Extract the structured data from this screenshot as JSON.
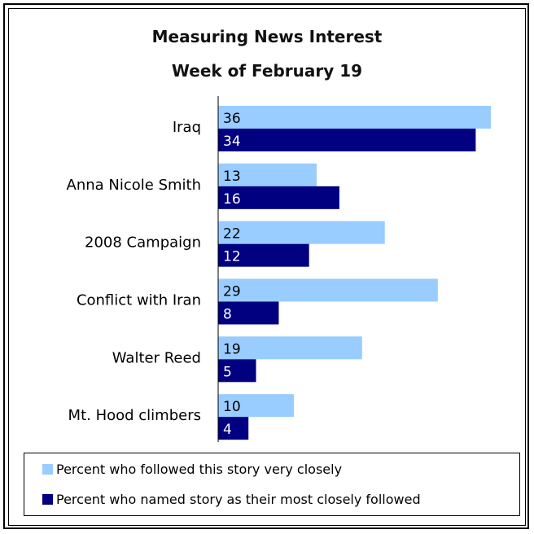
{
  "chart_data": {
    "type": "bar",
    "orientation": "horizontal",
    "title": [
      "Measuring News Interest",
      "Week of February 19"
    ],
    "categories": [
      "Iraq",
      "Anna Nicole Smith",
      "2008 Campaign",
      "Conflict with Iran",
      "Walter Reed",
      "Mt. Hood climbers"
    ],
    "series": [
      {
        "name": "Percent who followed this story very closely",
        "values": [
          36,
          13,
          22,
          29,
          19,
          10
        ],
        "color": "#99ccff"
      },
      {
        "name": "Percent who named story as their most closely followed",
        "values": [
          34,
          16,
          12,
          8,
          5,
          4
        ],
        "color": "#000080"
      }
    ],
    "xlim": [
      0,
      40
    ],
    "grid": false,
    "legend_position": "bottom"
  }
}
